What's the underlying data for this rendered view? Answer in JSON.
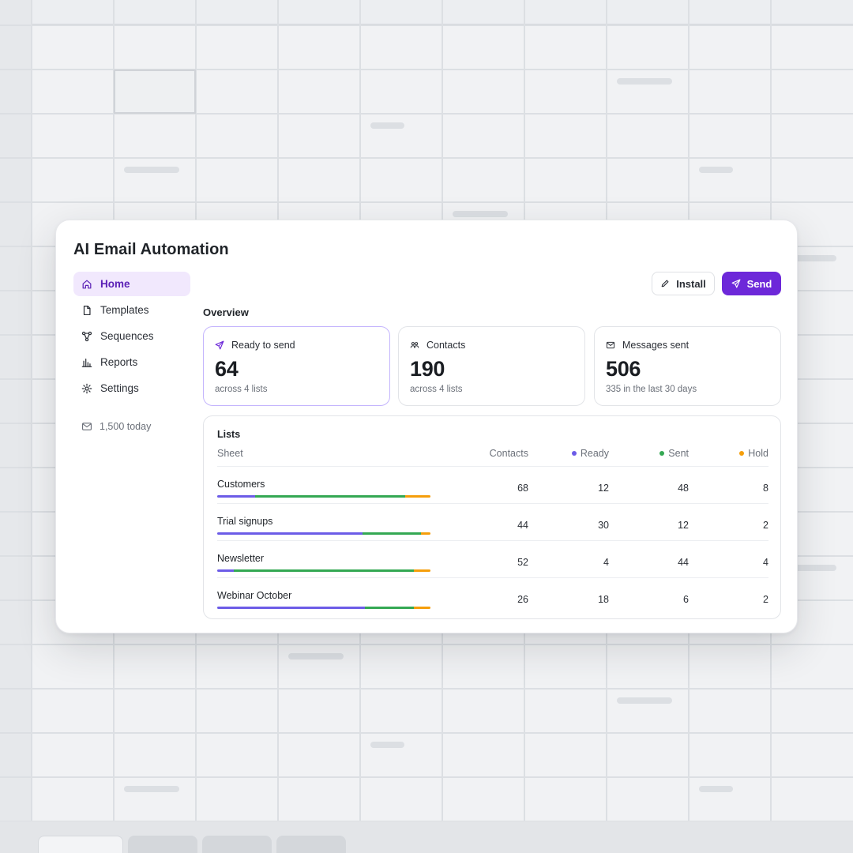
{
  "app": {
    "title": "AI Email Automation"
  },
  "sidebar": {
    "items": [
      {
        "label": "Home",
        "icon": "home-icon",
        "active": true
      },
      {
        "label": "Templates",
        "icon": "file-icon",
        "active": false
      },
      {
        "label": "Sequences",
        "icon": "sequence-icon",
        "active": false
      },
      {
        "label": "Reports",
        "icon": "bar-chart-icon",
        "active": false
      },
      {
        "label": "Settings",
        "icon": "gear-icon",
        "active": false
      }
    ],
    "quota": {
      "label": "1,500 today",
      "icon": "mail-icon"
    }
  },
  "toolbar": {
    "install_label": "Install",
    "send_label": "Send"
  },
  "overview": {
    "title": "Overview",
    "cards": [
      {
        "label": "Ready to send",
        "icon": "send-icon",
        "value": "64",
        "sub": "across 4 lists",
        "selected": true
      },
      {
        "label": "Contacts",
        "icon": "users-icon",
        "value": "190",
        "sub": "across 4 lists",
        "selected": false
      },
      {
        "label": "Messages sent",
        "icon": "mail-icon",
        "value": "506",
        "sub": "335 in the last 30 days",
        "selected": false
      }
    ]
  },
  "lists": {
    "title": "Lists",
    "columns": {
      "sheet": "Sheet",
      "contacts": "Contacts",
      "ready": "Ready",
      "sent": "Sent",
      "hold": "Hold"
    },
    "rows": [
      {
        "name": "Customers",
        "contacts": 68,
        "ready": 12,
        "sent": 48,
        "hold": 8
      },
      {
        "name": "Trial signups",
        "contacts": 44,
        "ready": 30,
        "sent": 12,
        "hold": 2
      },
      {
        "name": "Newsletter",
        "contacts": 52,
        "ready": 4,
        "sent": 44,
        "hold": 4
      },
      {
        "name": "Webinar October",
        "contacts": 26,
        "ready": 18,
        "sent": 6,
        "hold": 2
      }
    ]
  },
  "colors": {
    "accent": "#6d28d9",
    "ready": "#6c5ce7",
    "sent": "#34a853",
    "hold": "#f59e0b"
  }
}
